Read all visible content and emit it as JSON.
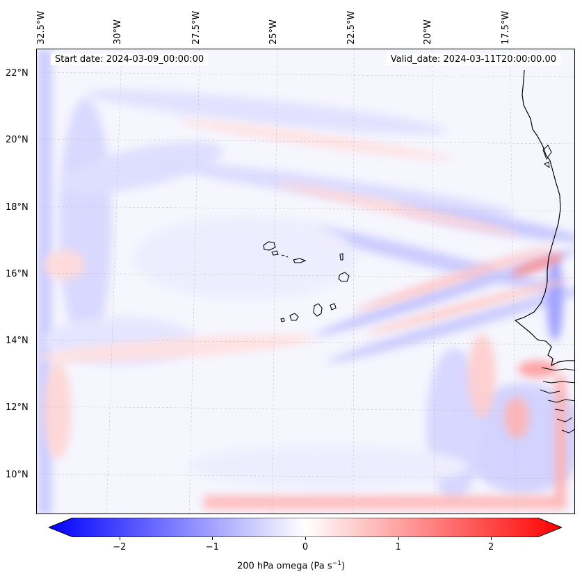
{
  "map": {
    "start_date": "Start date: 2024-03-09_00:00:00",
    "valid_date": "Valid_date: 2024-03-11T20:00:00.00",
    "lon_labels": [
      "32.5°W",
      "30°W",
      "27.5°W",
      "25°W",
      "22.5°W",
      "20°W",
      "17.5°W"
    ],
    "lat_labels": [
      "22°N",
      "20°N",
      "18°N",
      "16°N",
      "14°N",
      "12°N",
      "10°N"
    ],
    "extent": {
      "lon_min": -32.6,
      "lon_max": -15.4,
      "lat_min": 8.9,
      "lat_max": 22.8
    },
    "lons": [
      -32.5,
      -30,
      -27.5,
      -25,
      -22.5,
      -20,
      -17.5
    ],
    "lats": [
      22,
      20,
      18,
      16,
      14,
      12,
      10
    ]
  },
  "colorbar": {
    "label": "200 hPa omega (Pa s",
    "label_sup": "−1",
    "label_end": ")",
    "ticks": [
      "−2",
      "−1",
      "0",
      "1",
      "2"
    ],
    "tick_values": [
      -2,
      -1,
      0,
      1,
      2
    ],
    "vmin": -2.5,
    "vmax": 2.5,
    "cmap": "bwr",
    "color_min": "#0000ff",
    "color_mid": "#ffffff",
    "color_max": "#ff0000"
  }
}
